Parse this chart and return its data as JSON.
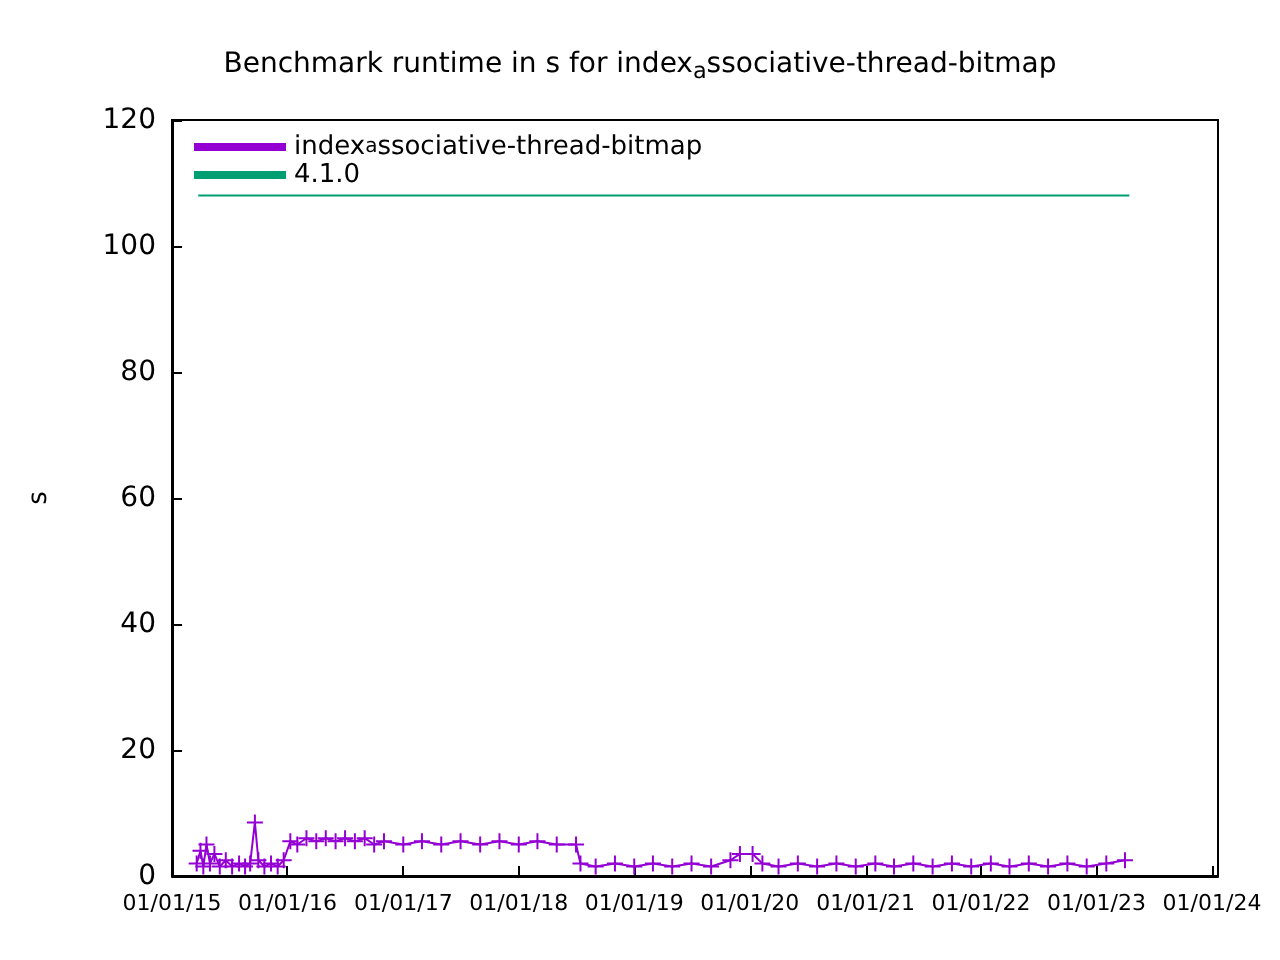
{
  "chart_data": {
    "type": "line",
    "title": "Benchmark runtime in s for index$_{a}$ssociative-thread-bitmap",
    "ylabel": "s",
    "xlim": [
      "2015-01-01",
      "2024-01-20"
    ],
    "xticks": [
      {
        "value": "2015-01-01",
        "label": "01/01/15"
      },
      {
        "value": "2016-01-01",
        "label": "01/01/16"
      },
      {
        "value": "2017-01-01",
        "label": "01/01/17"
      },
      {
        "value": "2018-01-01",
        "label": "01/01/18"
      },
      {
        "value": "2019-01-01",
        "label": "01/01/19"
      },
      {
        "value": "2020-01-01",
        "label": "01/01/20"
      },
      {
        "value": "2021-01-01",
        "label": "01/01/21"
      },
      {
        "value": "2022-01-01",
        "label": "01/01/22"
      },
      {
        "value": "2023-01-01",
        "label": "01/01/23"
      },
      {
        "value": "2024-01-01",
        "label": "01/01/24"
      }
    ],
    "ylim": [
      0,
      120
    ],
    "yticks": [
      0,
      20,
      40,
      60,
      80,
      100,
      120
    ],
    "grid": false,
    "legend": "top left",
    "series": [
      {
        "name": "index$_{a}$ssociative-thread-bitmap",
        "color": "#9400d3",
        "marker": "cross",
        "x": [
          "2015-03-20",
          "2015-04-01",
          "2015-04-10",
          "2015-04-20",
          "2015-05-01",
          "2015-05-15",
          "2015-06-01",
          "2015-06-20",
          "2015-07-10",
          "2015-08-01",
          "2015-08-20",
          "2015-09-05",
          "2015-09-20",
          "2015-10-01",
          "2015-10-20",
          "2015-11-10",
          "2015-12-01",
          "2015-12-20",
          "2016-01-10",
          "2016-02-01",
          "2016-03-01",
          "2016-04-01",
          "2016-05-01",
          "2016-06-01",
          "2016-07-01",
          "2016-08-01",
          "2016-09-01",
          "2016-10-01",
          "2016-11-01",
          "2017-01-01",
          "2017-03-01",
          "2017-05-01",
          "2017-07-01",
          "2017-09-01",
          "2017-11-01",
          "2018-01-01",
          "2018-03-01",
          "2018-05-01",
          "2018-07-01",
          "2018-07-15",
          "2018-09-01",
          "2018-11-01",
          "2019-01-01",
          "2019-03-01",
          "2019-05-01",
          "2019-07-01",
          "2019-09-01",
          "2019-11-01",
          "2019-12-01",
          "2020-01-10",
          "2020-02-10",
          "2020-04-01",
          "2020-06-01",
          "2020-08-01",
          "2020-10-01",
          "2020-12-01",
          "2021-02-01",
          "2021-04-01",
          "2021-06-01",
          "2021-08-01",
          "2021-10-01",
          "2021-12-01",
          "2022-02-01",
          "2022-04-01",
          "2022-06-01",
          "2022-08-01",
          "2022-10-01",
          "2022-12-01",
          "2023-02-01",
          "2023-04-01"
        ],
        "values": [
          2,
          4,
          1.5,
          5,
          2,
          3.5,
          1.5,
          2.5,
          1.5,
          2,
          1.5,
          2,
          8.5,
          2.5,
          1.5,
          2,
          1.5,
          2.5,
          5.5,
          5,
          6,
          5.5,
          6,
          5.5,
          6,
          5.5,
          6,
          5,
          5.5,
          5,
          5.5,
          5,
          5.5,
          5,
          5.5,
          5,
          5.5,
          5,
          5,
          2,
          1.5,
          2,
          1.5,
          2,
          1.5,
          2,
          1.5,
          2.5,
          3.5,
          3.5,
          2,
          1.5,
          2,
          1.5,
          2,
          1.5,
          2,
          1.5,
          2,
          1.5,
          2,
          1.5,
          2,
          1.5,
          2,
          1.5,
          2,
          1.5,
          2,
          2.5
        ]
      },
      {
        "name": "4.1.0",
        "color": "#009e73",
        "marker": "none",
        "x": [
          "2015-03-25",
          "2023-04-15"
        ],
        "values": [
          108,
          108
        ]
      }
    ]
  }
}
